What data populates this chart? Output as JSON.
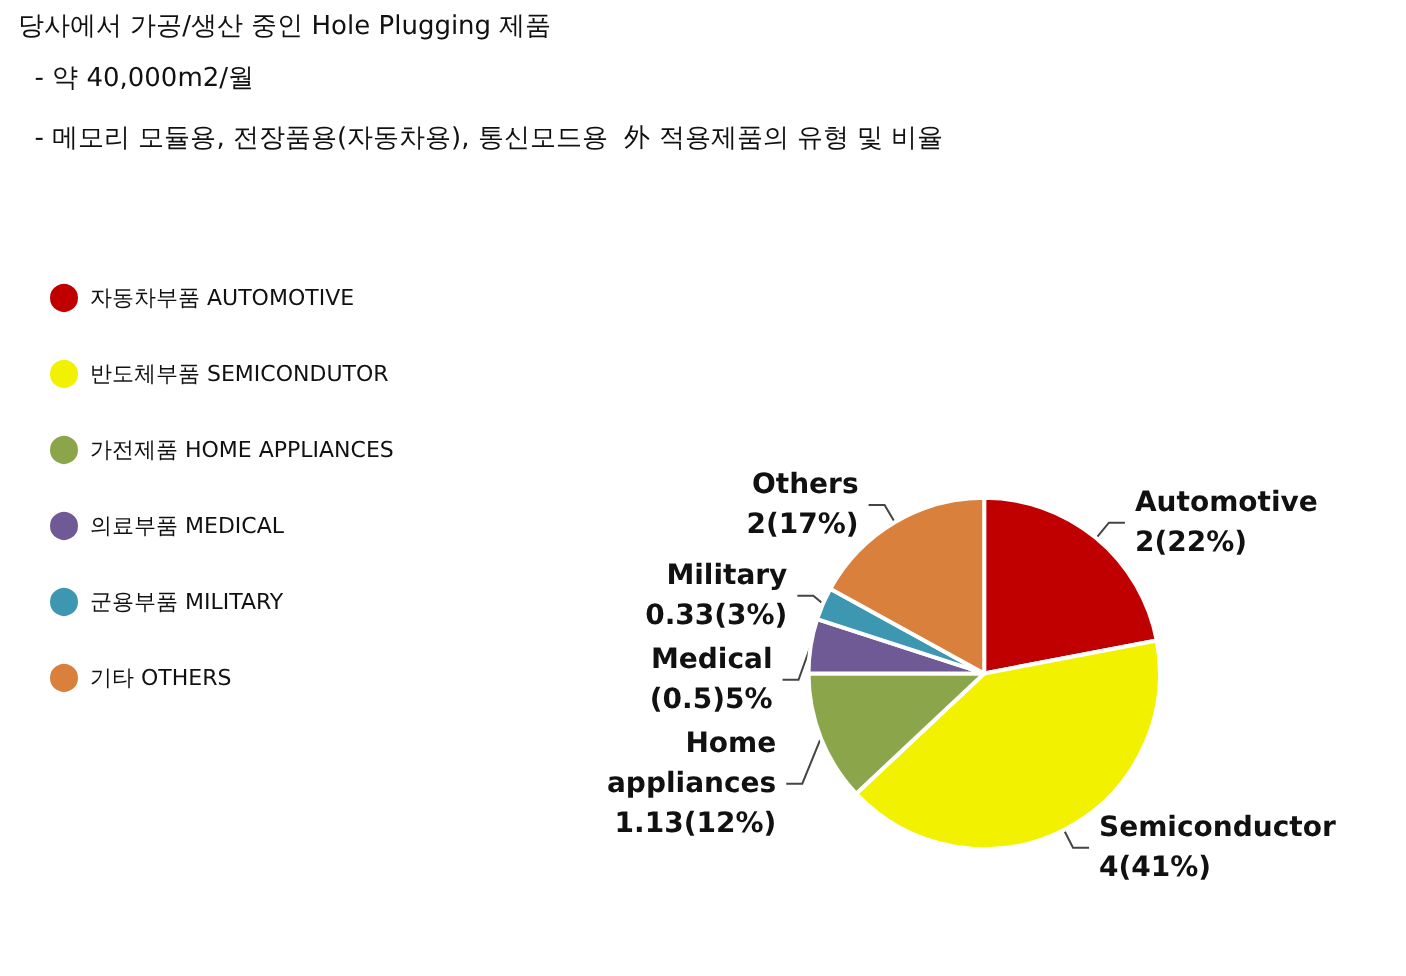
{
  "chart_data": {
    "type": "pie",
    "title": "당사에서 가공/생산 중인 Hole Plugging 제품",
    "subtitle": "  - 약 40,000m2/월\n\n  - 메모리 모듈용, 전장품용(자동차용), 통신모드용  外 적용제품의 유형 및 비율",
    "categories": [
      "자동차부품 AUTOMOTIVE",
      "반도체부품 SEMICONDUTOR",
      "가전제품 HOME APPLIANCES",
      "의료부품 MEDICAL",
      "군용부품 MILITARY",
      "기타 OTHERS"
    ],
    "values": [
      22,
      41,
      12,
      5,
      3,
      17
    ],
    "value_labels": [
      "Automotive\n2(22%)",
      "Semiconductor\n4(41%)",
      "Home\nappliances\n1.13(12%)",
      "Medical\n(0.5)5%",
      "Military\n0.33(3%)",
      "Others\n2(17%)"
    ],
    "colors": [
      "#c00000",
      "#f2f200",
      "#8ba64a",
      "#6f5a96",
      "#3d97b0",
      "#d9803c"
    ],
    "legend": "left"
  }
}
